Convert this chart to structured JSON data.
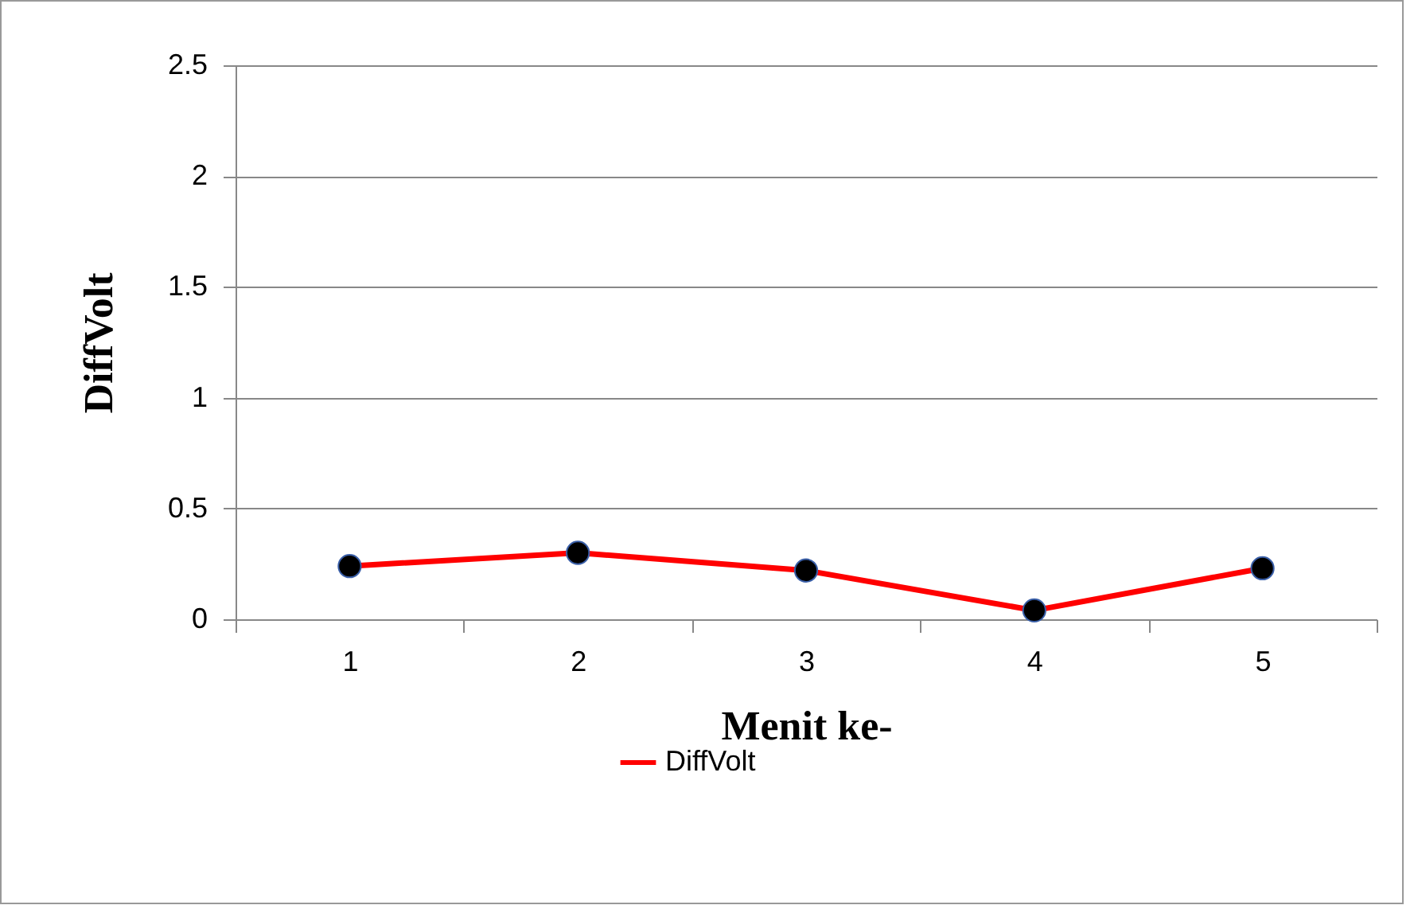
{
  "chart_data": {
    "type": "line",
    "xlabel": "Menit ke-",
    "ylabel": "DiffVolt",
    "categories": [
      "1",
      "2",
      "3",
      "4",
      "5"
    ],
    "series": [
      {
        "name": "DiffVolt",
        "color": "#ff0000",
        "values": [
          0.24,
          0.3,
          0.22,
          0.04,
          0.23
        ]
      }
    ],
    "ylim": [
      0,
      2.5
    ],
    "yticks": [
      0,
      0.5,
      1,
      1.5,
      2,
      2.5
    ],
    "grid": "y",
    "legend": "bottom",
    "marker": "circle",
    "line_style": "solid"
  }
}
